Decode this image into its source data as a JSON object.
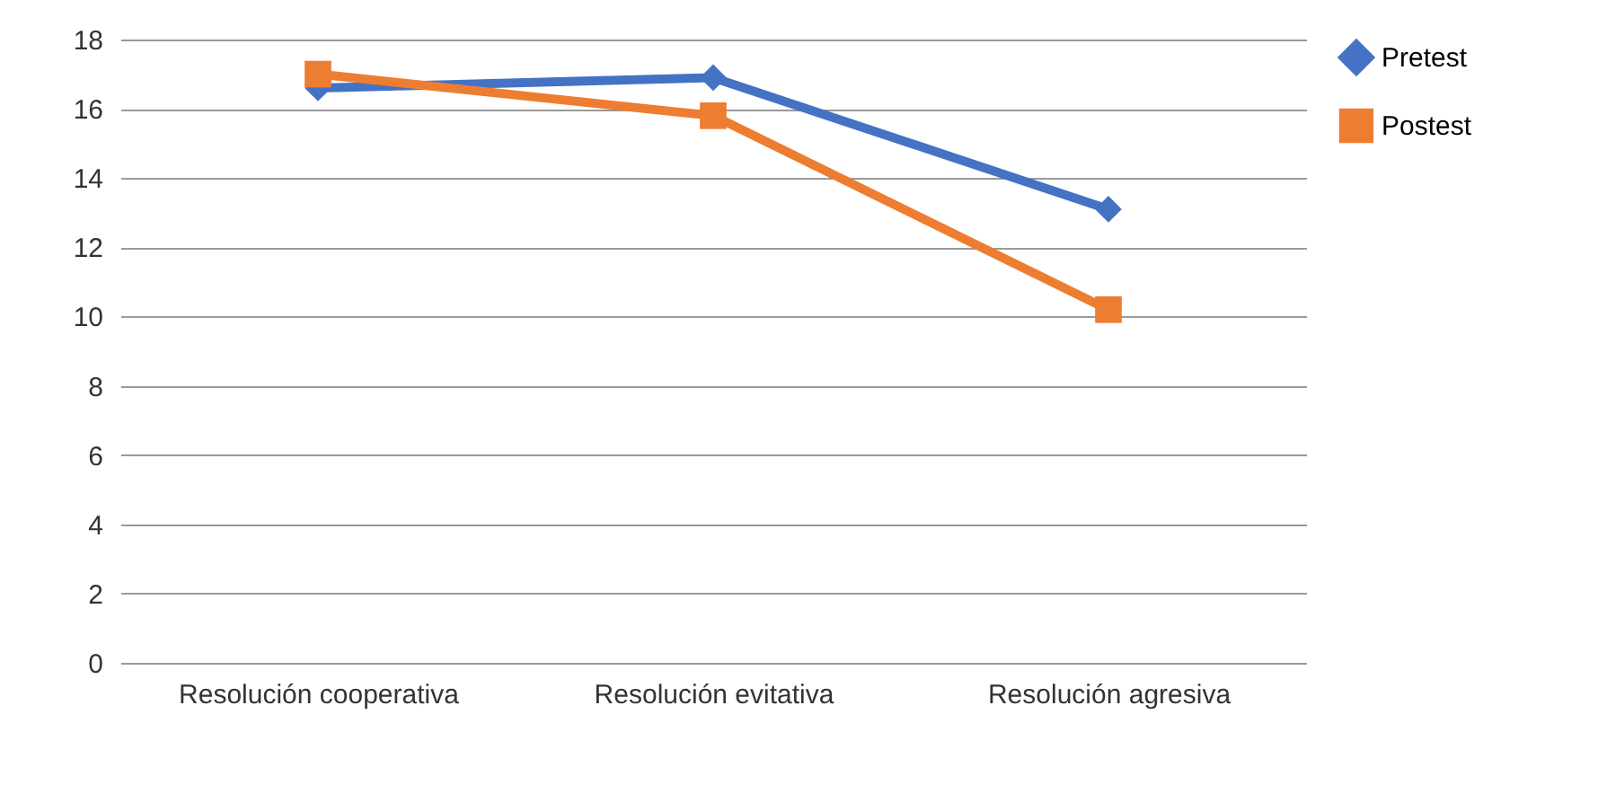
{
  "chart_data": {
    "type": "line",
    "categories": [
      "Resolución cooperativa",
      "Resolución evitativa",
      "Resolución agresiva"
    ],
    "series": [
      {
        "name": "Pretest",
        "color": "#4472c4",
        "marker": "diamond",
        "values": [
          16.6,
          16.9,
          13.1
        ]
      },
      {
        "name": "Postest",
        "color": "#ed7d31",
        "marker": "square",
        "values": [
          17.0,
          15.8,
          10.2
        ]
      }
    ],
    "ylim": [
      0,
      18
    ],
    "yticks": [
      0,
      2,
      4,
      6,
      8,
      10,
      12,
      14,
      16,
      18
    ],
    "grid": "y",
    "legend": "right"
  }
}
